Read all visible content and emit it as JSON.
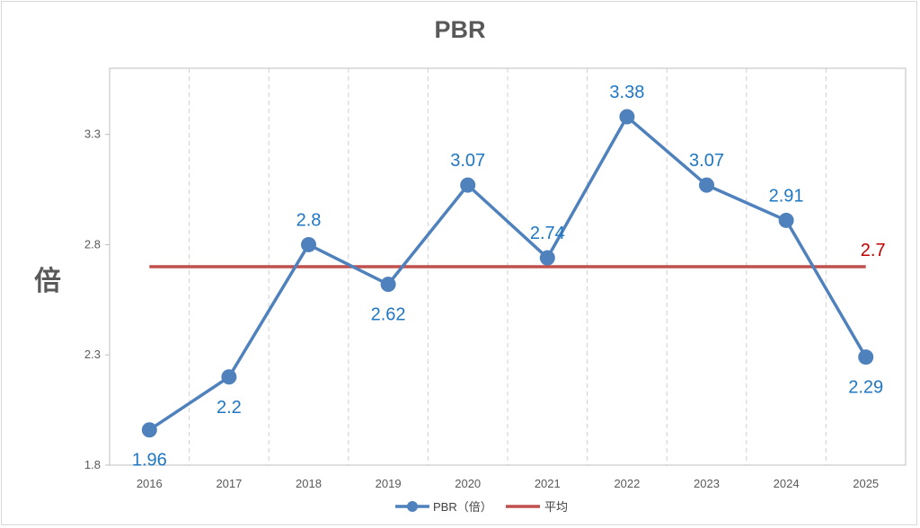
{
  "chart_data": {
    "type": "line",
    "title": "PBR",
    "ylabel": "倍",
    "xlabel": "",
    "categories": [
      "2016",
      "2017",
      "2018",
      "2019",
      "2020",
      "2021",
      "2022",
      "2023",
      "2024",
      "2025"
    ],
    "series": [
      {
        "name": "PBR（倍）",
        "values": [
          1.96,
          2.2,
          2.8,
          2.62,
          3.07,
          2.74,
          3.38,
          3.07,
          2.91,
          2.29
        ],
        "color": "#4f81bd"
      },
      {
        "name": "平均",
        "values": [
          2.7,
          2.7,
          2.7,
          2.7,
          2.7,
          2.7,
          2.7,
          2.7,
          2.7,
          2.7
        ],
        "color": "#c0504d"
      }
    ],
    "data_labels": [
      "1.96",
      "2.2",
      "2.8",
      "2.62",
      "3.07",
      "2.74",
      "3.38",
      "3.07",
      "2.91",
      "2.29"
    ],
    "average_label": "2.7",
    "yticks": [
      1.8,
      2.3,
      2.8,
      3.3
    ],
    "ytick_labels": [
      "1.8",
      "2.3",
      "2.8",
      "3.3"
    ],
    "ylim": [
      1.8,
      3.6
    ],
    "grid": "vertical dashed",
    "legend": "bottom-center",
    "colors": {
      "series": "#4f81bd",
      "average": "#c0504d",
      "data_label": "#1f77c4",
      "average_label": "#c00000"
    }
  }
}
